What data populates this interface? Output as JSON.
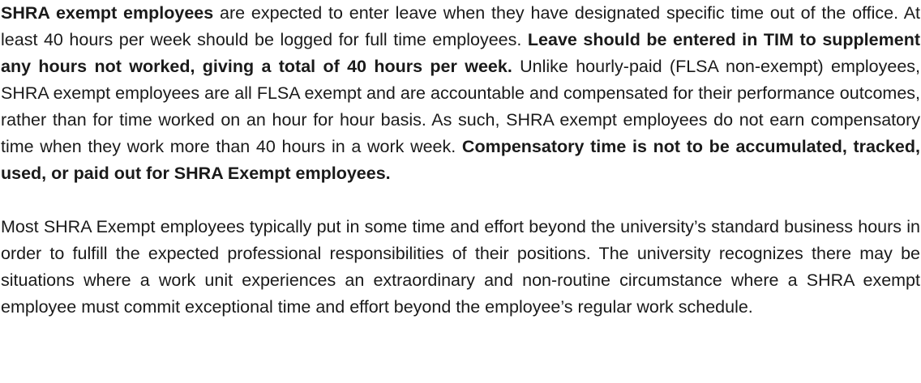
{
  "paragraph1": {
    "s1_bold": "SHRA exempt employees",
    "s1_rest": " are expected to enter leave when they have designated specific time out of the office. At least 40 hours per week should be logged for full time employees. ",
    "s2_bold": "Leave should be entered in TIM to supplement any hours not worked, giving a total of 40 hours per week.",
    "s3": " Unlike hourly-paid (FLSA non-exempt) employees, SHRA exempt employees are all FLSA exempt and are accountable and compensated for their performance outcomes, rather than for time worked on an hour for hour basis. As such, SHRA exempt employees do not earn compensatory time when they work more than 40 hours in a work week. ",
    "s4_bold": "Compensatory time is not to be accumulated, tracked, used, or paid out for SHRA Exempt employees."
  },
  "paragraph2": {
    "text": "Most SHRA Exempt employees typically put in some time and effort beyond the university’s standard business hours in order to fulfill the expected professional responsibilities of their positions. The university recognizes there may be situations where a work unit experiences an extraordinary and non-routine circumstance where a SHRA exempt employee must commit exceptional time and effort beyond the employee’s regular work schedule."
  }
}
